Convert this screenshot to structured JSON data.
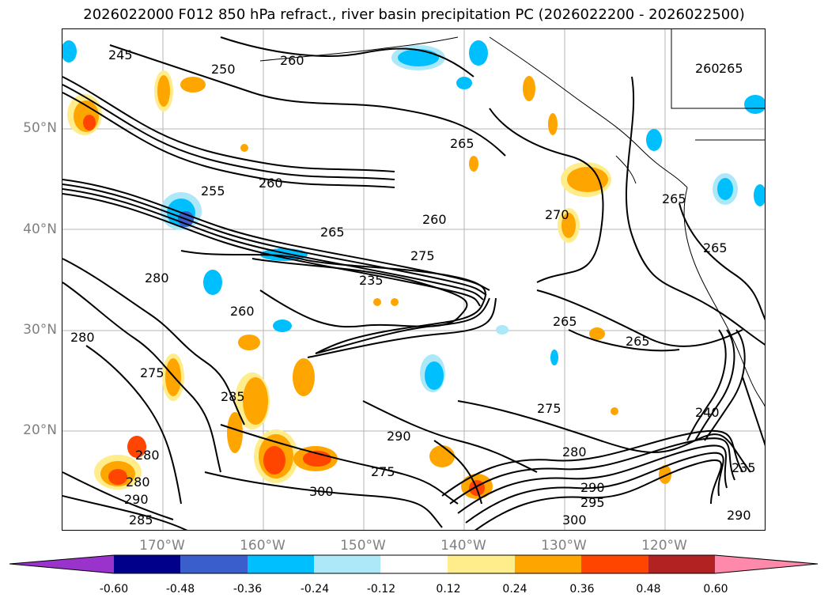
{
  "title": "2026022000 F012 850 hPa refract., river basin precipitation PC (2026022200 - 2026022500)",
  "lat_labels": [
    "50°N",
    "40°N",
    "30°N",
    "20°N"
  ],
  "lon_labels": [
    "170°W",
    "160°W",
    "150°W",
    "140°W",
    "130°W",
    "120°W"
  ],
  "colorbar": {
    "ticks": [
      "-0.60",
      "-0.48",
      "-0.36",
      "-0.24",
      "-0.12",
      "0.12",
      "0.24",
      "0.36",
      "0.48",
      "0.60"
    ],
    "colors": [
      "#9933cc",
      "#8a2be2",
      "#00008b",
      "#3a5fcd",
      "#00bfff",
      "#ade8f9",
      "#ffffff",
      "#ffec8b",
      "#ffa500",
      "#ff4500",
      "#b22222",
      "#ff89aa"
    ]
  },
  "contour_labels": [
    "245",
    "250",
    "255",
    "260",
    "265",
    "270",
    "275",
    "280",
    "285",
    "290",
    "295",
    "300",
    "235",
    "240"
  ]
}
